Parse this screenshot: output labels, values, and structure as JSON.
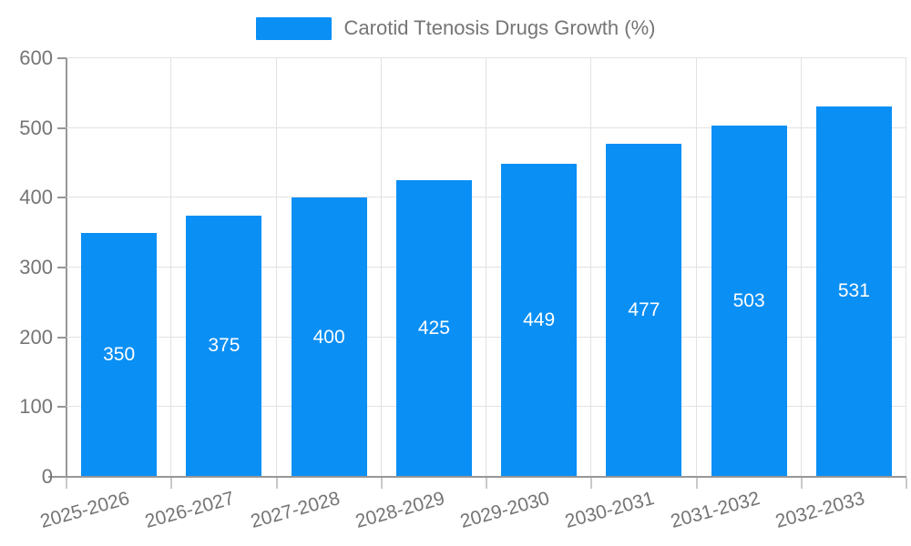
{
  "legend": {
    "label": "Carotid Ttenosis Drugs Growth (%)"
  },
  "chart_data": {
    "type": "bar",
    "title": "Carotid Ttenosis Drugs Growth (%)",
    "categories": [
      "2025-2026",
      "2026-2027",
      "2027-2028",
      "2028-2029",
      "2029-2030",
      "2030-2031",
      "2031-2032",
      "2032-2033"
    ],
    "values": [
      350,
      375,
      400,
      425,
      449,
      477,
      503,
      531
    ],
    "value_labels": [
      "350",
      "375",
      "400",
      "425",
      "449",
      "477",
      "503",
      "531"
    ],
    "xlabel": "",
    "ylabel": "",
    "ylim": [
      0,
      600
    ],
    "yticks": [
      0,
      100,
      200,
      300,
      400,
      500,
      600
    ],
    "ytick_labels": [
      "0",
      "100",
      "200",
      "300",
      "400",
      "500",
      "600"
    ],
    "grid": true,
    "legend_position": "top-center",
    "colors": {
      "bar": "#0a8ff5",
      "bar_value_text": "#ffffff",
      "axis_line": "#979797",
      "grid_line": "#e2e2e2",
      "tick_text": "#757575",
      "legend_text": "#757575",
      "background": "#ffffff"
    }
  }
}
